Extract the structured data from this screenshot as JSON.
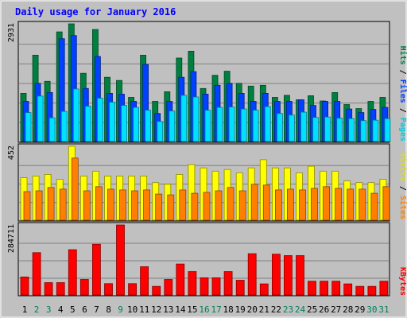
{
  "chart_data": [
    {
      "title": "Daily usage for January 2016",
      "type": "bar",
      "categories": [
        "1",
        "2",
        "3",
        "4",
        "5",
        "6",
        "7",
        "8",
        "9",
        "10",
        "11",
        "12",
        "13",
        "14",
        "15",
        "16",
        "17",
        "18",
        "19",
        "20",
        "21",
        "22",
        "23",
        "24",
        "25",
        "26",
        "27",
        "28",
        "29",
        "30",
        "31"
      ],
      "weekend_days": [
        "2",
        "3",
        "9",
        "16",
        "17",
        "23",
        "24",
        "30",
        "31"
      ],
      "axis_max_label": "2931",
      "ylim": [
        0,
        2931
      ],
      "series": [
        {
          "name": "Hits",
          "color": "#008040",
          "values": [
            1200,
            2150,
            1500,
            2730,
            2931,
            1700,
            2790,
            1600,
            1520,
            1100,
            2150,
            1000,
            1240,
            2080,
            2250,
            1320,
            1650,
            1750,
            1450,
            1380,
            1400,
            1100,
            1150,
            1040,
            1140,
            1010,
            1220,
            920,
            820,
            1000,
            1100
          ]
        },
        {
          "name": "Files",
          "color": "#0040ff",
          "values": [
            1000,
            1450,
            1220,
            2560,
            2640,
            1320,
            2120,
            1200,
            1180,
            1000,
            1920,
            700,
            1000,
            1600,
            1740,
            1180,
            1400,
            1450,
            1200,
            1000,
            1200,
            1000,
            1000,
            1040,
            900,
            1000,
            1000,
            810,
            720,
            800,
            850
          ]
        },
        {
          "name": "Pages",
          "color": "#00e0ff",
          "values": [
            720,
            1130,
            590,
            750,
            1310,
            880,
            1080,
            980,
            900,
            850,
            780,
            500,
            760,
            1150,
            1110,
            780,
            850,
            860,
            810,
            780,
            870,
            700,
            660,
            730,
            600,
            610,
            580,
            570,
            520,
            530,
            570
          ]
        }
      ]
    },
    {
      "type": "bar",
      "categories": [
        "1",
        "2",
        "3",
        "4",
        "5",
        "6",
        "7",
        "8",
        "9",
        "10",
        "11",
        "12",
        "13",
        "14",
        "15",
        "16",
        "17",
        "18",
        "19",
        "20",
        "21",
        "22",
        "23",
        "24",
        "25",
        "26",
        "27",
        "28",
        "29",
        "30",
        "31"
      ],
      "axis_max_label": "452",
      "ylim": [
        0,
        452
      ],
      "series": [
        {
          "name": "Visits",
          "color": "#ffff00",
          "values": [
            260,
            270,
            280,
            250,
            452,
            270,
            300,
            270,
            270,
            270,
            270,
            230,
            220,
            280,
            340,
            320,
            300,
            310,
            290,
            320,
            370,
            320,
            320,
            290,
            330,
            300,
            300,
            240,
            230,
            230,
            250
          ]
        },
        {
          "name": "Sites",
          "color": "#ff8000",
          "values": [
            175,
            180,
            200,
            190,
            380,
            180,
            205,
            190,
            185,
            180,
            185,
            160,
            155,
            185,
            165,
            170,
            180,
            200,
            180,
            220,
            215,
            185,
            190,
            185,
            195,
            205,
            195,
            190,
            190,
            165,
            205
          ]
        }
      ]
    },
    {
      "type": "bar",
      "categories": [
        "1",
        "2",
        "3",
        "4",
        "5",
        "6",
        "7",
        "8",
        "9",
        "10",
        "11",
        "12",
        "13",
        "14",
        "15",
        "16",
        "17",
        "18",
        "19",
        "20",
        "21",
        "22",
        "23",
        "24",
        "25",
        "26",
        "27",
        "28",
        "29",
        "30",
        "31"
      ],
      "axis_max_label": "284711",
      "ylim": [
        0,
        284711
      ],
      "series": [
        {
          "name": "KBytes",
          "color": "#ff0000",
          "values": [
            73000,
            172000,
            50000,
            50000,
            184000,
            63000,
            206000,
            46000,
            284711,
            46000,
            115000,
            35000,
            63000,
            126000,
            95000,
            70000,
            70000,
            95000,
            60000,
            168000,
            45000,
            166000,
            160000,
            160000,
            56000,
            56000,
            56000,
            45000,
            35000,
            35000,
            56000
          ]
        }
      ]
    }
  ],
  "legend": {
    "pages": "Pages",
    "files": "Files",
    "hits": "Hits",
    "sites": "Sites",
    "visits": "Visits",
    "kbytes": "KBytes",
    "separator": " / "
  },
  "colors": {
    "background": "#c0c0c0",
    "title": "#0000ff",
    "gridline": "#808080",
    "weekday_label": "#000000",
    "weekend_label": "#00805c"
  }
}
